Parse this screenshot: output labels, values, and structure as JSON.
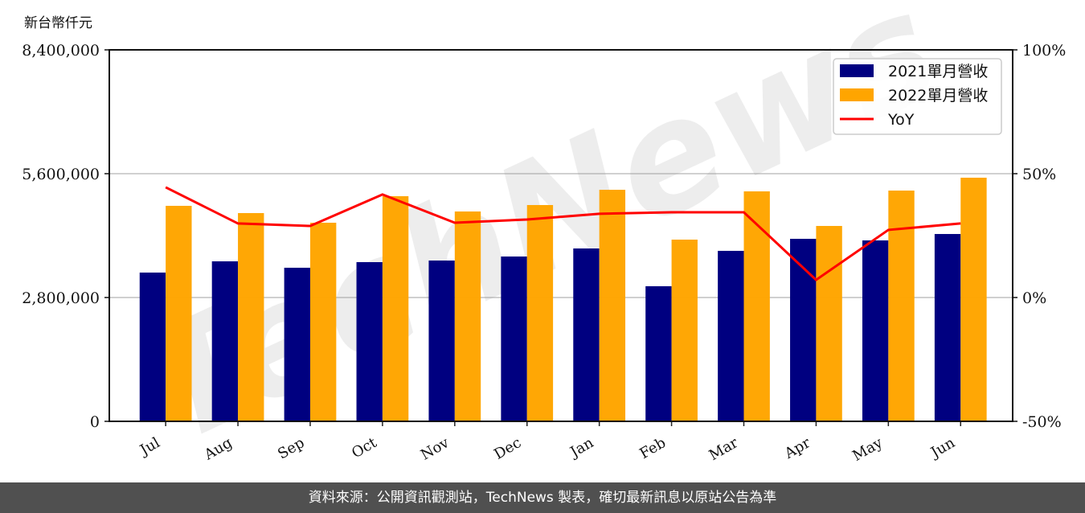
{
  "chart_data": {
    "type": "bar",
    "title": "",
    "ylabel": "新台幣仟元",
    "y2label": "",
    "categories": [
      "Jul",
      "Aug",
      "Sep",
      "Oct",
      "Nov",
      "Dec",
      "Jan",
      "Feb",
      "Mar",
      "Apr",
      "May",
      "Jun"
    ],
    "series": [
      {
        "name": "2021單月營收",
        "type": "bar",
        "color": "#000080",
        "values": [
          3364000,
          3618000,
          3473000,
          3600000,
          3636000,
          3727000,
          3909000,
          3055000,
          3855000,
          4127000,
          4091000,
          4236000
        ]
      },
      {
        "name": "2022單月營收",
        "type": "bar",
        "color": "#FFA500",
        "values": [
          4873000,
          4709000,
          4491000,
          5091000,
          4745000,
          4891000,
          5236000,
          4109000,
          5200000,
          4418000,
          5218000,
          5509000
        ]
      },
      {
        "name": "YoY",
        "type": "line",
        "axis": "right",
        "color": "#FF0000",
        "values": [
          44.5,
          29.9,
          28.9,
          41.6,
          30.2,
          31.5,
          33.8,
          34.4,
          34.4,
          7.1,
          27.3,
          29.9
        ]
      }
    ],
    "ylim": [
      0,
      8400000
    ],
    "y2lim": [
      -50,
      100
    ],
    "yticks": [
      "0",
      "2,800,000",
      "5,600,000",
      "8,400,000"
    ],
    "y2ticks": [
      "-50%",
      "0%",
      "50%",
      "100%"
    ],
    "grid": true,
    "legend_position": "upper right",
    "watermark": "TechNews"
  },
  "labels": {
    "unit": "新台幣仟元",
    "footer": "資料來源：公開資訊觀測站，TechNews 製表，確切最新訊息以原站公告為準"
  }
}
